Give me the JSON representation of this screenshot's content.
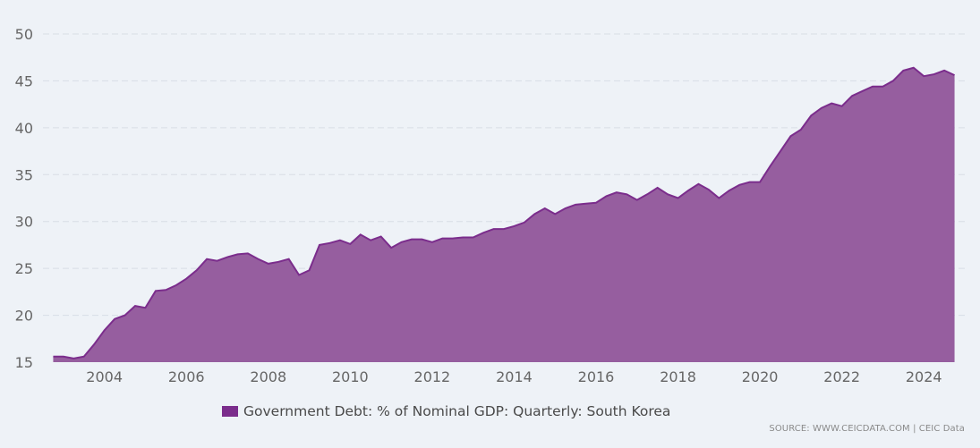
{
  "colors": {
    "series": "#7b2d8c",
    "fill": "#965e9f",
    "grid": "#d8dde6",
    "text": "#666666"
  },
  "legend": {
    "label": "Government Debt: % of Nominal GDP: Quarterly: South Korea"
  },
  "source": {
    "text": "SOURCE: WWW.CEICDATA.COM | CEIC Data"
  },
  "chart_data": {
    "type": "area",
    "title": "",
    "xlabel": "",
    "ylabel": "",
    "ylim": [
      15,
      50
    ],
    "xlim": [
      2002.5,
      2025.0
    ],
    "yticks": [
      15,
      20,
      25,
      30,
      35,
      40,
      45,
      50
    ],
    "xticks": [
      2004,
      2006,
      2008,
      2010,
      2012,
      2014,
      2016,
      2018,
      2020,
      2022,
      2024
    ],
    "grid": true,
    "legend_position": "bottom",
    "series": [
      {
        "name": "Government Debt: % of Nominal GDP: Quarterly: South Korea",
        "x": [
          2002.75,
          2003.0,
          2003.25,
          2003.5,
          2003.75,
          2004.0,
          2004.25,
          2004.5,
          2004.75,
          2005.0,
          2005.25,
          2005.5,
          2005.75,
          2006.0,
          2006.25,
          2006.5,
          2006.75,
          2007.0,
          2007.25,
          2007.5,
          2007.75,
          2008.0,
          2008.25,
          2008.5,
          2008.75,
          2009.0,
          2009.25,
          2009.5,
          2009.75,
          2010.0,
          2010.25,
          2010.5,
          2010.75,
          2011.0,
          2011.25,
          2011.5,
          2011.75,
          2012.0,
          2012.25,
          2012.5,
          2012.75,
          2013.0,
          2013.25,
          2013.5,
          2013.75,
          2014.0,
          2014.25,
          2014.5,
          2014.75,
          2015.0,
          2015.25,
          2015.5,
          2015.75,
          2016.0,
          2016.25,
          2016.5,
          2016.75,
          2017.0,
          2017.25,
          2017.5,
          2017.75,
          2018.0,
          2018.25,
          2018.5,
          2018.75,
          2019.0,
          2019.25,
          2019.5,
          2019.75,
          2020.0,
          2020.25,
          2020.5,
          2020.75,
          2021.0,
          2021.25,
          2021.5,
          2021.75,
          2022.0,
          2022.25,
          2022.5,
          2022.75,
          2023.0,
          2023.25,
          2023.5,
          2023.75,
          2024.0,
          2024.25,
          2024.5,
          2024.75
        ],
        "values": [
          15.6,
          15.6,
          15.4,
          15.6,
          16.9,
          18.4,
          19.6,
          20.0,
          21.0,
          20.8,
          22.6,
          22.7,
          23.2,
          23.9,
          24.8,
          26.0,
          25.8,
          26.2,
          26.5,
          26.6,
          26.0,
          25.5,
          25.7,
          26.0,
          24.3,
          24.8,
          27.5,
          27.7,
          28.0,
          27.6,
          28.6,
          28.0,
          28.4,
          27.2,
          27.8,
          28.1,
          28.1,
          27.8,
          28.2,
          28.2,
          28.3,
          28.3,
          28.8,
          29.2,
          29.2,
          29.5,
          29.9,
          30.8,
          31.4,
          30.8,
          31.4,
          31.8,
          31.9,
          32.0,
          32.7,
          33.1,
          32.9,
          32.3,
          32.9,
          33.6,
          32.9,
          32.5,
          33.3,
          34.0,
          33.4,
          32.5,
          33.3,
          33.9,
          34.2,
          34.2,
          35.9,
          37.5,
          39.1,
          39.8,
          41.3,
          42.1,
          42.6,
          42.3,
          43.4,
          43.9,
          44.4,
          44.4,
          45.0,
          46.1,
          46.4,
          45.5,
          45.7,
          46.1,
          45.6
        ]
      }
    ]
  }
}
